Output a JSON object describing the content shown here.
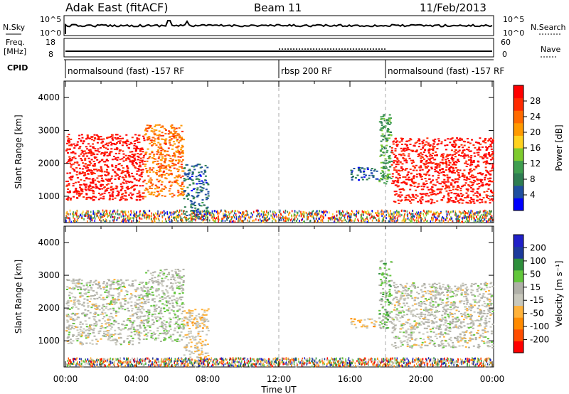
{
  "header": {
    "station": "Adak East (fitACF)",
    "beam": "Beam 11",
    "date": "11/Feb/2013"
  },
  "strips": {
    "nsky_label": "N.Sky",
    "nsky_ticks": [
      "10^5",
      "10^0"
    ],
    "nsearch_label": "N.Search",
    "nsearch_ticks": [
      "10^5",
      "10^0"
    ],
    "freq_label_1": "Freq.",
    "freq_label_2": "[MHz]",
    "freq_ticks": [
      "18",
      "8"
    ],
    "nave_label": "Nave",
    "nave_ticks": [
      "60",
      "0"
    ],
    "cpid_label": "CPID",
    "cpid_segments": [
      {
        "label": "normalsound (fast) -157 RF",
        "start_h": 0,
        "end_h": 12
      },
      {
        "label": "rbsp 200 RF",
        "start_h": 12,
        "end_h": 18
      },
      {
        "label": "normalsound (fast) -157 RF",
        "start_h": 18,
        "end_h": 24
      }
    ]
  },
  "colors": {
    "power_scale": [
      "#0000ff",
      "#1f4fa0",
      "#2e7d52",
      "#3f9e4f",
      "#7ecb2e",
      "#ffd21f",
      "#ff9a00",
      "#ff6a00",
      "#ff2a00",
      "#ff0000"
    ],
    "velocity_scale": [
      "#ff0000",
      "#ff4d00",
      "#ff8a00",
      "#ffb23a",
      "#c8c8bc",
      "#b0b0a8",
      "#62c73b",
      "#2e8f3c",
      "#1c3a9c",
      "#2020c8"
    ]
  },
  "chart_data": [
    {
      "type": "heatmap",
      "name": "power",
      "xlabel": "",
      "ylabel": "Slant Range [km]",
      "xlim": [
        0,
        24
      ],
      "ylim": [
        200,
        4500
      ],
      "y_ticks": [
        1000,
        2000,
        3000,
        4000
      ],
      "colorbar": {
        "label": "Power [dB]",
        "ticks": [
          "4",
          "8",
          "12",
          "16",
          "20",
          "24",
          "28"
        ],
        "range": [
          0,
          30
        ]
      },
      "echo_regions": [
        {
          "x": [
            0.0,
            4.4
          ],
          "y": [
            900,
            2900
          ],
          "value": 28
        },
        {
          "x": [
            4.4,
            6.6
          ],
          "y": [
            1000,
            3200
          ],
          "value": 22
        },
        {
          "x": [
            6.6,
            8.0
          ],
          "y": [
            300,
            2000
          ],
          "value": 6
        },
        {
          "x": [
            17.6,
            18.3
          ],
          "y": [
            1400,
            3500
          ],
          "value": 10
        },
        {
          "x": [
            18.3,
            24.0
          ],
          "y": [
            800,
            2800
          ],
          "value": 28
        },
        {
          "x": [
            16.0,
            17.5
          ],
          "y": [
            1500,
            1900
          ],
          "value": 5
        }
      ],
      "near_range_band": {
        "x": [
          0,
          24
        ],
        "y": [
          250,
          600
        ]
      }
    },
    {
      "type": "heatmap",
      "name": "velocity",
      "xlabel": "Time UT",
      "ylabel": "Slant Range [km]",
      "xlim": [
        0,
        24
      ],
      "ylim": [
        200,
        4500
      ],
      "y_ticks": [
        1000,
        2000,
        3000,
        4000
      ],
      "x_ticks": [
        "00:00",
        "04:00",
        "08:00",
        "12:00",
        "16:00",
        "20:00",
        "00:00"
      ],
      "colorbar": {
        "label": "Velocity [m s⁻¹]",
        "ticks": [
          "-200",
          "-100",
          "-50",
          "-15",
          "15",
          "50",
          "100",
          "200"
        ],
        "range": [
          -250,
          250
        ]
      },
      "echo_regions": [
        {
          "x": [
            0.0,
            4.4
          ],
          "y": [
            900,
            2900
          ],
          "value": 0
        },
        {
          "x": [
            4.4,
            6.6
          ],
          "y": [
            1000,
            3200
          ],
          "value": 20
        },
        {
          "x": [
            6.6,
            8.0
          ],
          "y": [
            300,
            2000
          ],
          "value": -40
        },
        {
          "x": [
            17.6,
            18.3
          ],
          "y": [
            1400,
            3500
          ],
          "value": 60
        },
        {
          "x": [
            18.3,
            24.0
          ],
          "y": [
            800,
            2800
          ],
          "value": 0
        },
        {
          "x": [
            16.0,
            17.5
          ],
          "y": [
            1400,
            1700
          ],
          "value": -60
        }
      ],
      "near_range_band": {
        "x": [
          0,
          24
        ],
        "y": [
          250,
          500
        ]
      }
    }
  ],
  "mode_boundaries_h": [
    12,
    18
  ]
}
